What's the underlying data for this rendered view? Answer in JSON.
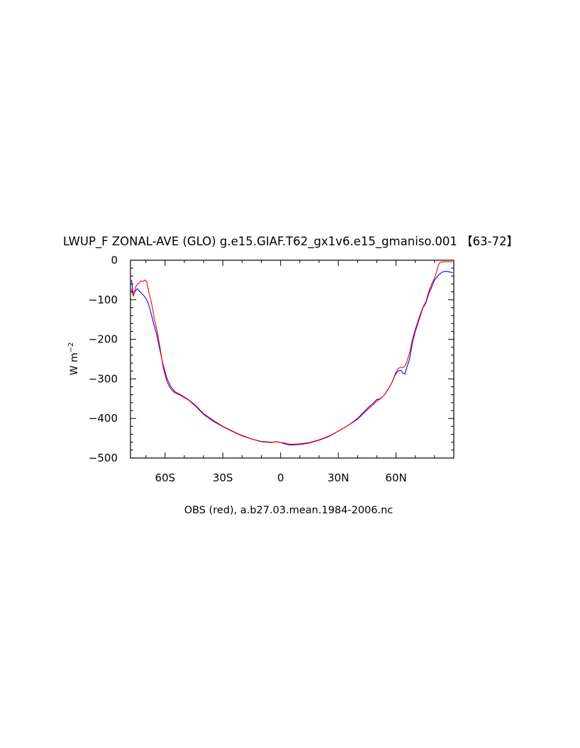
{
  "chart_data": {
    "type": "line",
    "title": "LWUP_F ZONAL-AVE (GLO) g.e15.GIAF.T62_gx1v6.e15_gmaniso.001 【63-72】",
    "xlabel": "OBS (red), a.b27.03.mean.1984-2006.nc",
    "ylabel": "W m",
    "ylabel_superscript": "−2",
    "xlim": [
      -78,
      90
    ],
    "ylim": [
      -500,
      0
    ],
    "x_ticks": [
      {
        "value": -60,
        "label": "60S"
      },
      {
        "value": -30,
        "label": "30S"
      },
      {
        "value": 0,
        "label": "0"
      },
      {
        "value": 30,
        "label": "30N"
      },
      {
        "value": 60,
        "label": "60N"
      }
    ],
    "y_ticks": [
      {
        "value": 0,
        "label": "0"
      },
      {
        "value": -100,
        "label": "−100"
      },
      {
        "value": -200,
        "label": "−200"
      },
      {
        "value": -300,
        "label": "−300"
      },
      {
        "value": -400,
        "label": "−400"
      },
      {
        "value": -500,
        "label": "−500"
      }
    ],
    "grid": false,
    "series": [
      {
        "color": "#0000ff",
        "points": [
          [
            -77.5,
            -50
          ],
          [
            -76.5,
            -88
          ],
          [
            -75.5,
            -78
          ],
          [
            -74.5,
            -72
          ],
          [
            -73,
            -80
          ],
          [
            -71,
            -90
          ],
          [
            -69.5,
            -100
          ],
          [
            -68,
            -120
          ],
          [
            -66,
            -160
          ],
          [
            -64.5,
            -185
          ],
          [
            -63,
            -220
          ],
          [
            -61,
            -265
          ],
          [
            -59,
            -300
          ],
          [
            -57,
            -320
          ],
          [
            -55,
            -332
          ],
          [
            -52,
            -340
          ],
          [
            -48,
            -352
          ],
          [
            -44,
            -368
          ],
          [
            -40,
            -388
          ],
          [
            -35,
            -405
          ],
          [
            -30,
            -420
          ],
          [
            -25,
            -432
          ],
          [
            -20,
            -443
          ],
          [
            -15,
            -452
          ],
          [
            -10,
            -458
          ],
          [
            -5,
            -460
          ],
          [
            -2,
            -459
          ],
          [
            0,
            -461
          ],
          [
            2,
            -464
          ],
          [
            4,
            -467
          ],
          [
            6,
            -467
          ],
          [
            10,
            -466
          ],
          [
            15,
            -462
          ],
          [
            20,
            -455
          ],
          [
            25,
            -446
          ],
          [
            30,
            -432
          ],
          [
            35,
            -418
          ],
          [
            40,
            -400
          ],
          [
            43,
            -385
          ],
          [
            46,
            -370
          ],
          [
            48,
            -362
          ],
          [
            50,
            -352
          ],
          [
            52,
            -350
          ],
          [
            54,
            -340
          ],
          [
            56,
            -325
          ],
          [
            58,
            -308
          ],
          [
            59.5,
            -290
          ],
          [
            61,
            -280
          ],
          [
            62.5,
            -278
          ],
          [
            63.5,
            -285
          ],
          [
            64.5,
            -288
          ],
          [
            65.5,
            -272
          ],
          [
            67,
            -250
          ],
          [
            68.5,
            -210
          ],
          [
            70,
            -180
          ],
          [
            72,
            -150
          ],
          [
            74,
            -120
          ],
          [
            75.5,
            -108
          ],
          [
            77,
            -85
          ],
          [
            78.5,
            -68
          ],
          [
            80,
            -50
          ],
          [
            82,
            -38
          ],
          [
            84,
            -30
          ],
          [
            86,
            -28
          ],
          [
            88,
            -30
          ],
          [
            89.5,
            -32
          ]
        ]
      },
      {
        "color": "#ff0000",
        "points": [
          [
            -77.5,
            -72
          ],
          [
            -76.5,
            -92
          ],
          [
            -75.5,
            -70
          ],
          [
            -74.5,
            -60
          ],
          [
            -73.5,
            -58
          ],
          [
            -72.5,
            -52
          ],
          [
            -71.5,
            -54
          ],
          [
            -70.5,
            -50
          ],
          [
            -69.5,
            -55
          ],
          [
            -68.5,
            -80
          ],
          [
            -67,
            -110
          ],
          [
            -65.5,
            -150
          ],
          [
            -64,
            -182
          ],
          [
            -62.5,
            -225
          ],
          [
            -61,
            -272
          ],
          [
            -59,
            -308
          ],
          [
            -57,
            -326
          ],
          [
            -55,
            -335
          ],
          [
            -52,
            -342
          ],
          [
            -48,
            -353
          ],
          [
            -44,
            -370
          ],
          [
            -40,
            -390
          ],
          [
            -35,
            -407
          ],
          [
            -30,
            -421
          ],
          [
            -25,
            -433
          ],
          [
            -20,
            -444
          ],
          [
            -15,
            -452
          ],
          [
            -10,
            -459
          ],
          [
            -5,
            -461
          ],
          [
            -2,
            -459
          ],
          [
            0,
            -461
          ],
          [
            2,
            -462
          ],
          [
            4,
            -464
          ],
          [
            6,
            -465
          ],
          [
            10,
            -464
          ],
          [
            15,
            -461
          ],
          [
            20,
            -454
          ],
          [
            25,
            -445
          ],
          [
            30,
            -432
          ],
          [
            35,
            -418
          ],
          [
            40,
            -402
          ],
          [
            43,
            -388
          ],
          [
            46,
            -374
          ],
          [
            48,
            -366
          ],
          [
            50,
            -356
          ],
          [
            52,
            -350
          ],
          [
            54,
            -340
          ],
          [
            56,
            -326
          ],
          [
            58,
            -308
          ],
          [
            59.5,
            -288
          ],
          [
            61,
            -274
          ],
          [
            62.5,
            -270
          ],
          [
            63.5,
            -272
          ],
          [
            64.5,
            -268
          ],
          [
            65.5,
            -258
          ],
          [
            67,
            -235
          ],
          [
            68.5,
            -200
          ],
          [
            70,
            -175
          ],
          [
            72,
            -145
          ],
          [
            74,
            -118
          ],
          [
            75.5,
            -105
          ],
          [
            77,
            -80
          ],
          [
            78.5,
            -60
          ],
          [
            80,
            -45
          ],
          [
            81,
            -30
          ],
          [
            82,
            -12
          ],
          [
            83,
            -5
          ],
          [
            85,
            -4
          ],
          [
            87,
            -4
          ],
          [
            89.5,
            -4
          ]
        ]
      }
    ]
  }
}
